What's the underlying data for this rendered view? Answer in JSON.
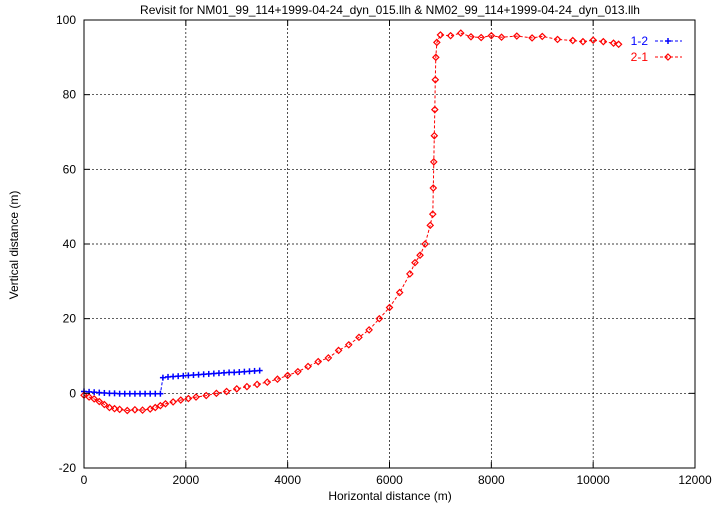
{
  "chart_data": {
    "type": "scatter",
    "title": "Revisit for NM01_99_114+1999-04-24_dyn_015.llh & NM02_99_114+1999-04-24_dyn_013.llh",
    "xlabel": "Horizontal distance (m)",
    "ylabel": "Vertical distance (m)",
    "xlim": [
      0,
      12000
    ],
    "ylim": [
      -20,
      100
    ],
    "xticks": [
      0,
      2000,
      4000,
      6000,
      8000,
      10000,
      12000
    ],
    "yticks": [
      -20,
      0,
      20,
      40,
      60,
      80,
      100
    ],
    "grid": true,
    "legend_position": "top-right",
    "series": [
      {
        "name": "1-2",
        "color": "#0000ff",
        "marker": "plus",
        "points": [
          [
            0,
            0.5
          ],
          [
            100,
            0.4
          ],
          [
            200,
            0.3
          ],
          [
            300,
            0.2
          ],
          [
            400,
            0.1
          ],
          [
            500,
            0.0
          ],
          [
            600,
            0.0
          ],
          [
            700,
            -0.1
          ],
          [
            800,
            -0.1
          ],
          [
            900,
            -0.1
          ],
          [
            1000,
            -0.1
          ],
          [
            1100,
            -0.1
          ],
          [
            1200,
            -0.1
          ],
          [
            1300,
            -0.1
          ],
          [
            1400,
            -0.1
          ],
          [
            1500,
            -0.1
          ],
          [
            1550,
            4.2
          ],
          [
            1650,
            4.4
          ],
          [
            1750,
            4.5
          ],
          [
            1850,
            4.6
          ],
          [
            1950,
            4.7
          ],
          [
            2050,
            4.8
          ],
          [
            2150,
            4.9
          ],
          [
            2250,
            5.0
          ],
          [
            2350,
            5.1
          ],
          [
            2450,
            5.2
          ],
          [
            2550,
            5.3
          ],
          [
            2650,
            5.4
          ],
          [
            2750,
            5.5
          ],
          [
            2850,
            5.6
          ],
          [
            2950,
            5.6
          ],
          [
            3050,
            5.7
          ],
          [
            3150,
            5.8
          ],
          [
            3250,
            5.9
          ],
          [
            3350,
            6.0
          ],
          [
            3450,
            6.1
          ]
        ]
      },
      {
        "name": "2-1",
        "color": "#ff0000",
        "marker": "diamond",
        "points": [
          [
            0,
            -0.5
          ],
          [
            100,
            -1.0
          ],
          [
            200,
            -1.5
          ],
          [
            300,
            -2.2
          ],
          [
            400,
            -3.0
          ],
          [
            500,
            -3.8
          ],
          [
            600,
            -4.1
          ],
          [
            700,
            -4.3
          ],
          [
            850,
            -4.6
          ],
          [
            1000,
            -4.4
          ],
          [
            1150,
            -4.5
          ],
          [
            1300,
            -4.2
          ],
          [
            1400,
            -3.8
          ],
          [
            1500,
            -3.3
          ],
          [
            1600,
            -2.8
          ],
          [
            1750,
            -2.3
          ],
          [
            1900,
            -1.8
          ],
          [
            2050,
            -1.4
          ],
          [
            2200,
            -1.0
          ],
          [
            2400,
            -0.6
          ],
          [
            2600,
            0.0
          ],
          [
            2800,
            0.5
          ],
          [
            3000,
            1.2
          ],
          [
            3200,
            1.8
          ],
          [
            3400,
            2.4
          ],
          [
            3600,
            3.0
          ],
          [
            3800,
            3.8
          ],
          [
            4000,
            4.8
          ],
          [
            4200,
            5.8
          ],
          [
            4400,
            7.2
          ],
          [
            4600,
            8.5
          ],
          [
            4800,
            9.5
          ],
          [
            5000,
            11.5
          ],
          [
            5200,
            13.0
          ],
          [
            5400,
            15.0
          ],
          [
            5600,
            17.0
          ],
          [
            5800,
            20.0
          ],
          [
            6000,
            23.0
          ],
          [
            6200,
            27.0
          ],
          [
            6400,
            32.0
          ],
          [
            6500,
            35.0
          ],
          [
            6600,
            37.0
          ],
          [
            6700,
            40.0
          ],
          [
            6800,
            45.0
          ],
          [
            6850,
            48.0
          ],
          [
            6860,
            55.0
          ],
          [
            6870,
            62.0
          ],
          [
            6880,
            69.0
          ],
          [
            6890,
            76.0
          ],
          [
            6900,
            84.0
          ],
          [
            6910,
            90.0
          ],
          [
            6930,
            94.0
          ],
          [
            7000,
            96.0
          ],
          [
            7200,
            95.8
          ],
          [
            7400,
            96.5
          ],
          [
            7600,
            95.5
          ],
          [
            7800,
            95.3
          ],
          [
            8000,
            95.8
          ],
          [
            8200,
            95.4
          ],
          [
            8500,
            95.7
          ],
          [
            8800,
            95.2
          ],
          [
            9000,
            95.6
          ],
          [
            9300,
            94.8
          ],
          [
            9600,
            94.5
          ],
          [
            9800,
            94.2
          ],
          [
            10000,
            94.6
          ],
          [
            10200,
            94.2
          ],
          [
            10400,
            93.8
          ],
          [
            10500,
            93.5
          ]
        ]
      }
    ]
  }
}
